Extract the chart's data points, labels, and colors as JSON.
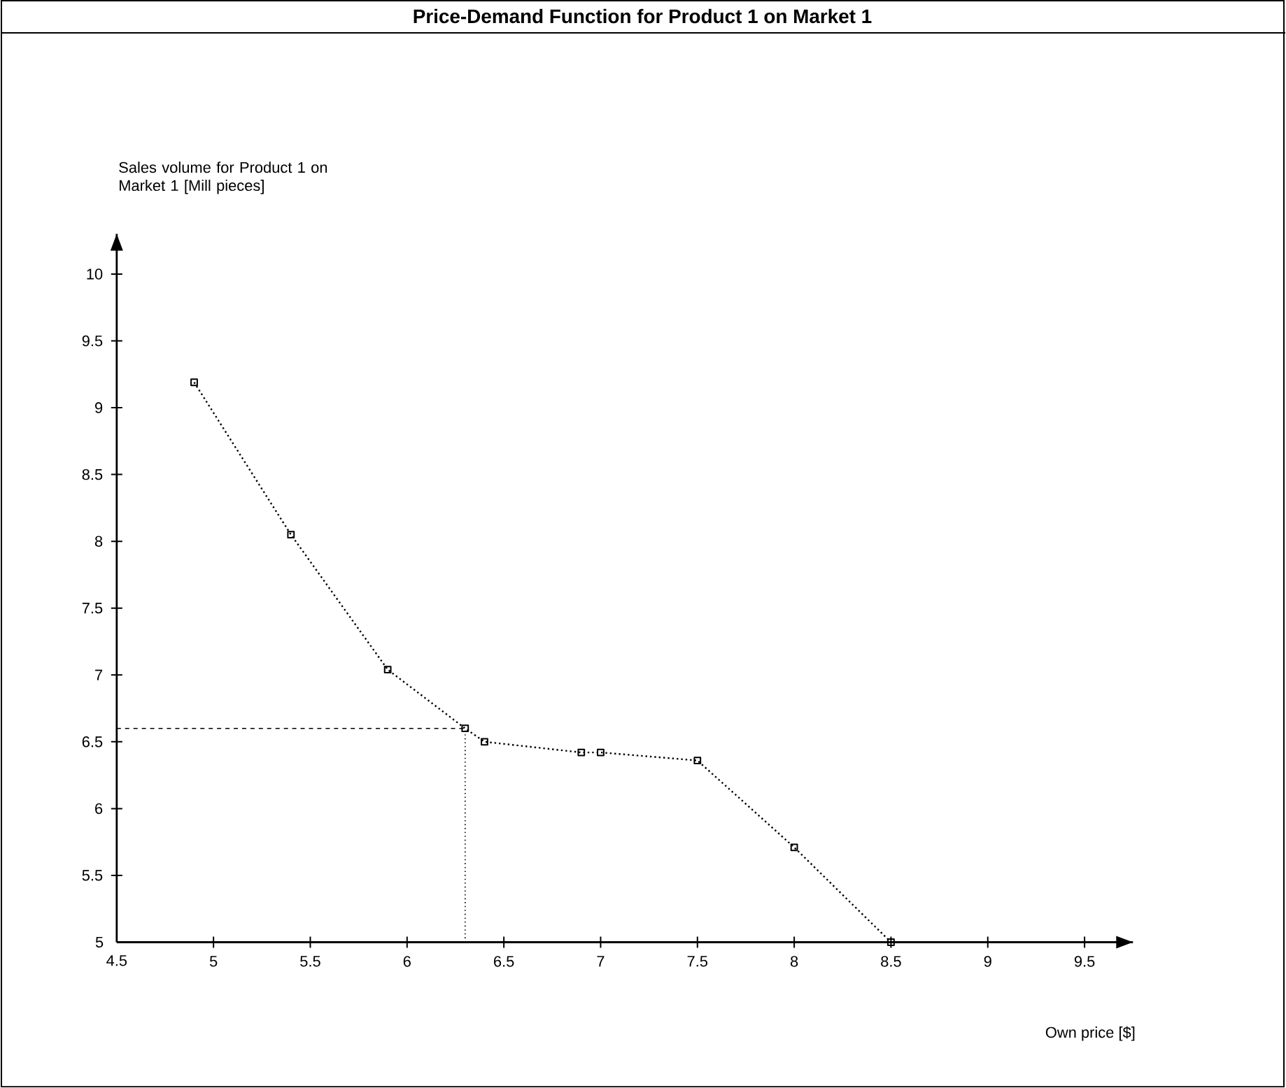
{
  "chart_data": {
    "type": "line",
    "title": "Price-Demand Function for Product 1 on Market 1",
    "xlabel": "Own price [$]",
    "ylabel": "Sales volume for Product 1 on Market 1 [Mill pieces]",
    "x": [
      4.9,
      5.4,
      5.9,
      6.3,
      6.4,
      6.9,
      7.0,
      7.5,
      8.0,
      8.5
    ],
    "series": [
      {
        "color": "#000000",
        "values": [
          9.19,
          8.05,
          7.04,
          6.6,
          6.5,
          6.42,
          6.42,
          6.36,
          5.71,
          5.0
        ]
      }
    ],
    "xlim": [
      4.5,
      9.75
    ],
    "ylim": [
      5,
      10.3
    ],
    "xticks": [
      4.5,
      5,
      5.5,
      6,
      6.5,
      7,
      7.5,
      8,
      8.5,
      9,
      9.5
    ],
    "yticks": [
      5,
      5.5,
      6,
      6.5,
      7,
      7.5,
      8,
      8.5,
      9,
      9.5,
      10
    ],
    "ref_lines": [
      {
        "axis": "y",
        "value": 6.6,
        "line_style": "dashed"
      },
      {
        "axis": "x",
        "value": 6.3,
        "line_style": "dotted"
      }
    ],
    "marker": "square",
    "line_style": "dotted",
    "grid": false
  }
}
